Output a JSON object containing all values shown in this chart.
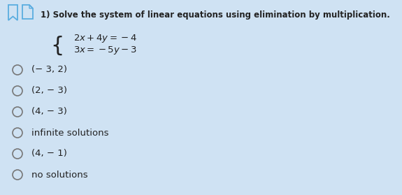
{
  "background_color": "#cfe2f3",
  "title": "1) Solve the system of linear equations using elimination by multiplication.",
  "title_fontsize": 8.5,
  "eq_fontsize": 9.5,
  "option_fontsize": 9.5,
  "icon_color": "#5aade0",
  "font_color": "#222222",
  "options": [
    "(− 3, 2)",
    "(2, − 3)",
    "(4, − 3)",
    "infinite solutions",
    "(4, − 1)",
    "no solutions"
  ]
}
